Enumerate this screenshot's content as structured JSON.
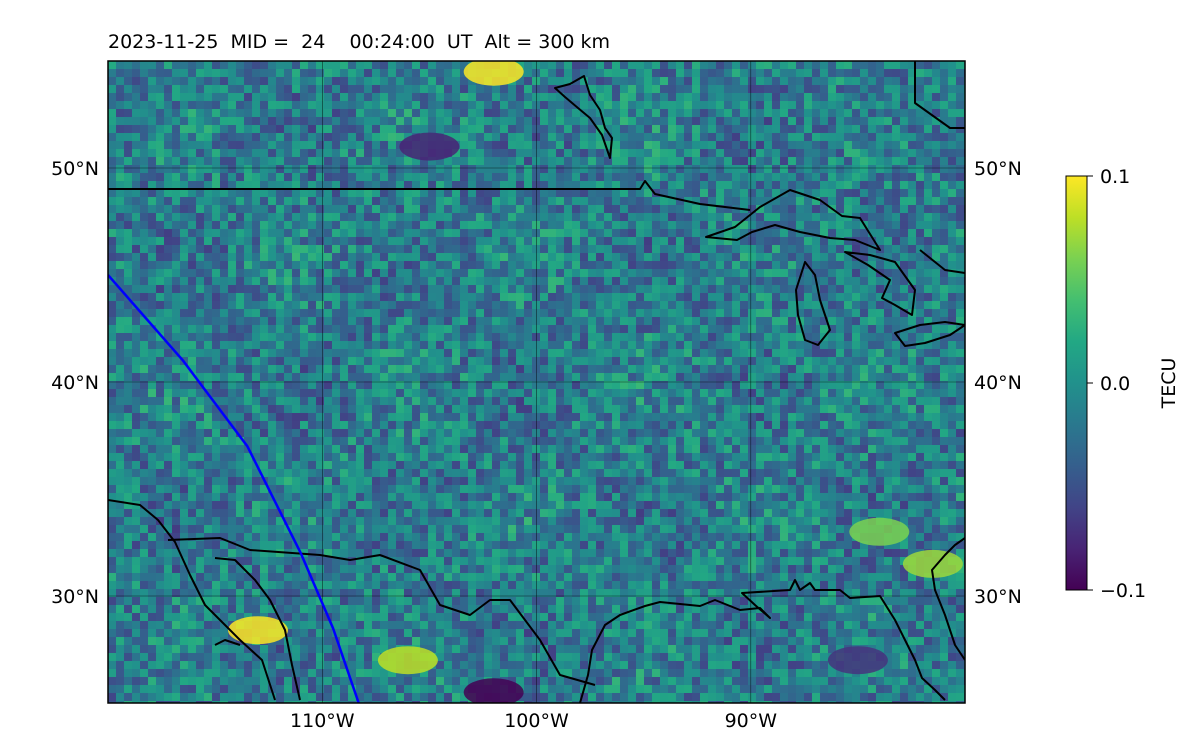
{
  "chart_data": {
    "type": "heatmap",
    "title": "2023-11-25  MID =  24    00:24:00  UT  Alt = 300 km",
    "map_extent": {
      "lon": [
        -120,
        -80
      ],
      "lat": [
        25,
        55
      ]
    },
    "x_ticks": [
      {
        "value": -110,
        "label": "110°W"
      },
      {
        "value": -100,
        "label": "100°W"
      },
      {
        "value": -90,
        "label": "90°W"
      }
    ],
    "y_ticks": [
      {
        "value": 30,
        "label": "30°N"
      },
      {
        "value": 40,
        "label": "40°N"
      },
      {
        "value": 50,
        "label": "50°N"
      }
    ],
    "grid": true,
    "colormap": "viridis",
    "colorbar": {
      "label": "TECU",
      "range": [
        -0.1,
        0.1
      ],
      "ticks": [
        {
          "value": 0.1,
          "label": "0.1"
        },
        {
          "value": 0.0,
          "label": "0.0"
        },
        {
          "value": -0.1,
          "label": "−0.1"
        }
      ]
    },
    "hotspots": [
      {
        "lon": -113.0,
        "lat": 28.4,
        "value": 0.1
      },
      {
        "lon": -106.0,
        "lat": 27.0,
        "value": 0.08
      },
      {
        "lon": -102.0,
        "lat": 54.5,
        "value": 0.1
      },
      {
        "lon": -102.0,
        "lat": 25.5,
        "value": -0.1
      },
      {
        "lon": -105.0,
        "lat": 51.0,
        "value": -0.08
      },
      {
        "lon": -84.0,
        "lat": 33.0,
        "value": 0.06
      },
      {
        "lon": -81.5,
        "lat": 31.5,
        "value": 0.07
      },
      {
        "lon": -85.0,
        "lat": 27.0,
        "value": -0.07
      }
    ],
    "track": {
      "color": "#0000ff",
      "points": [
        {
          "lon": -120.0,
          "lat": 45.0
        },
        {
          "lon": -116.5,
          "lat": 41.0
        },
        {
          "lon": -113.5,
          "lat": 37.0
        },
        {
          "lon": -111.0,
          "lat": 32.0
        },
        {
          "lon": -109.5,
          "lat": 28.5
        },
        {
          "lon": -108.3,
          "lat": 25.0
        }
      ]
    }
  }
}
